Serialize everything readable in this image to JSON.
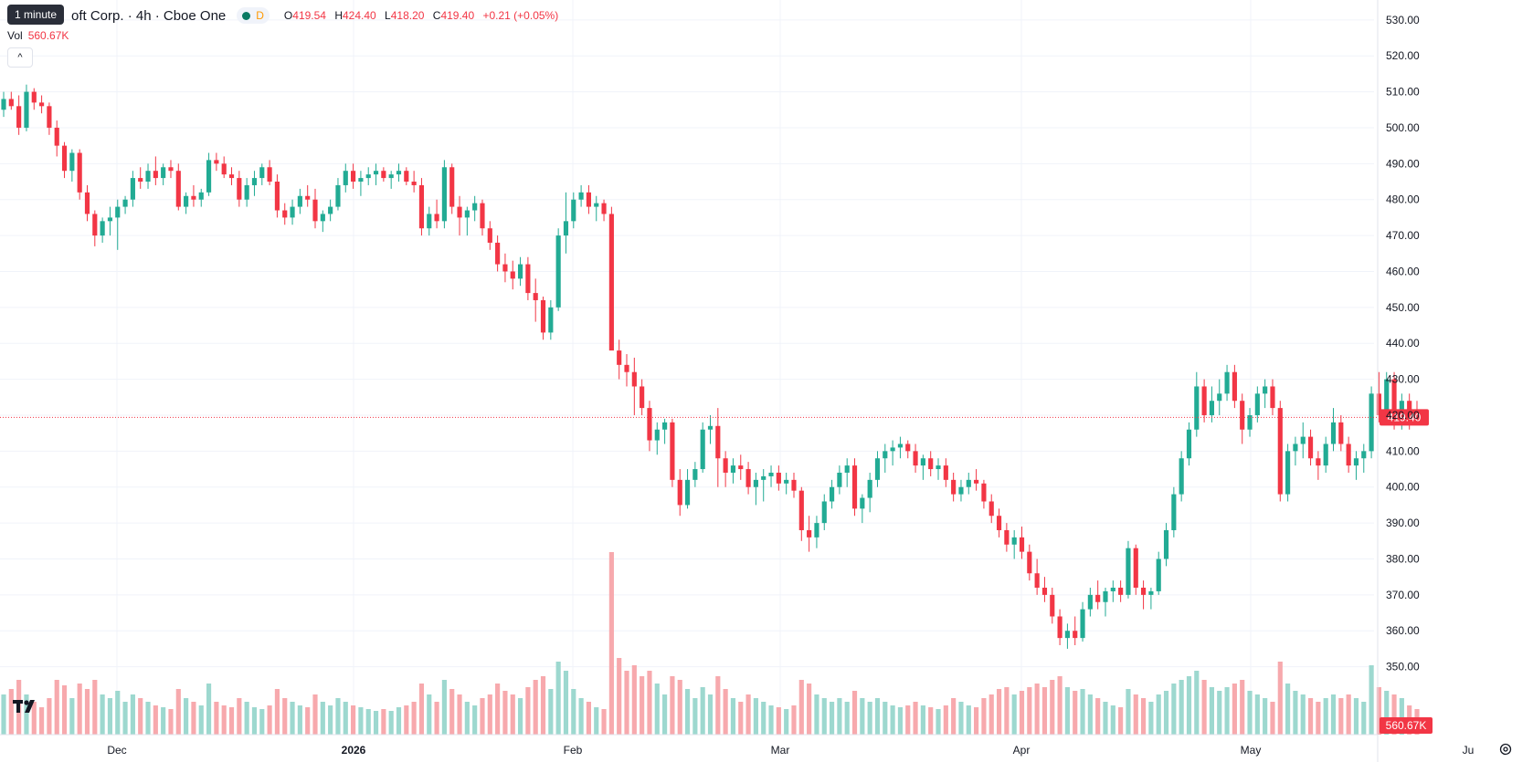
{
  "header": {
    "title": "oft Corp. · 4h · Cboe One",
    "tooltip": "1 minute",
    "interval_flag": "D",
    "ohlc": {
      "o_label": "O",
      "o": "419.54",
      "h_label": "H",
      "h": "424.40",
      "l_label": "L",
      "l": "418.20",
      "c_label": "C",
      "c": "419.40",
      "change": "+0.21 (+0.05%)"
    },
    "vol_label": "Vol",
    "vol_value": "560.67K",
    "collapse_icon": "^"
  },
  "colors": {
    "up": "#22ab94",
    "down": "#f23645",
    "vol_up": "#9dd8cf",
    "vol_down": "#f7a9ad",
    "grid": "#f0f3fa",
    "axis_text": "#131722"
  },
  "chart_data": {
    "type": "candlestick",
    "price_axis": {
      "ticks": [
        "530.00",
        "520.00",
        "510.00",
        "500.00",
        "490.00",
        "480.00",
        "470.00",
        "460.00",
        "450.00",
        "440.00",
        "430.00",
        "420.00",
        "410.00",
        "400.00",
        "390.00",
        "380.00",
        "370.00",
        "360.00",
        "350.00"
      ],
      "min": 340,
      "max": 533
    },
    "time_axis": {
      "labels": [
        "Dec",
        "2026",
        "Feb",
        "Mar",
        "Apr",
        "May",
        "Ju"
      ]
    },
    "last_price": {
      "value": 419.4,
      "label": "419.40"
    },
    "last_volume_label": "560.67K",
    "bars": [
      [
        505,
        510,
        503,
        508,
        0.22
      ],
      [
        508,
        510,
        505,
        506,
        0.25
      ],
      [
        506,
        509,
        498,
        500,
        0.3
      ],
      [
        500,
        512,
        499,
        510,
        0.22
      ],
      [
        510,
        511,
        505,
        507,
        0.18
      ],
      [
        507,
        509,
        504,
        506,
        0.15
      ],
      [
        506,
        507,
        498,
        500,
        0.2
      ],
      [
        500,
        502,
        492,
        495,
        0.3
      ],
      [
        495,
        496,
        486,
        488,
        0.27
      ],
      [
        488,
        494,
        485,
        493,
        0.2
      ],
      [
        493,
        494,
        480,
        482,
        0.28
      ],
      [
        482,
        484,
        474,
        476,
        0.25
      ],
      [
        476,
        477,
        467,
        470,
        0.3
      ],
      [
        470,
        475,
        468,
        474,
        0.22
      ],
      [
        474,
        478,
        470,
        475,
        0.2
      ],
      [
        475,
        480,
        466,
        478,
        0.24
      ],
      [
        478,
        481,
        476,
        480,
        0.18
      ],
      [
        480,
        488,
        478,
        486,
        0.22
      ],
      [
        486,
        489,
        483,
        485,
        0.2
      ],
      [
        485,
        490,
        483,
        488,
        0.18
      ],
      [
        488,
        492,
        484,
        486,
        0.16
      ],
      [
        486,
        490,
        484,
        489,
        0.15
      ],
      [
        489,
        491,
        486,
        488,
        0.14
      ],
      [
        488,
        490,
        477,
        478,
        0.25
      ],
      [
        478,
        482,
        476,
        481,
        0.2
      ],
      [
        481,
        484,
        478,
        480,
        0.18
      ],
      [
        480,
        483,
        478,
        482,
        0.16
      ],
      [
        482,
        493,
        481,
        491,
        0.28
      ],
      [
        491,
        493,
        488,
        490,
        0.18
      ],
      [
        490,
        492,
        486,
        487,
        0.16
      ],
      [
        487,
        489,
        484,
        486,
        0.15
      ],
      [
        486,
        488,
        478,
        480,
        0.2
      ],
      [
        480,
        486,
        478,
        484,
        0.18
      ],
      [
        484,
        488,
        481,
        486,
        0.15
      ],
      [
        486,
        490,
        484,
        489,
        0.14
      ],
      [
        489,
        491,
        484,
        485,
        0.16
      ],
      [
        485,
        487,
        475,
        477,
        0.25
      ],
      [
        477,
        479,
        473,
        475,
        0.2
      ],
      [
        475,
        480,
        473,
        478,
        0.18
      ],
      [
        478,
        483,
        476,
        481,
        0.16
      ],
      [
        481,
        484,
        478,
        480,
        0.15
      ],
      [
        480,
        483,
        472,
        474,
        0.22
      ],
      [
        474,
        477,
        471,
        476,
        0.18
      ],
      [
        476,
        480,
        474,
        478,
        0.16
      ],
      [
        478,
        486,
        477,
        484,
        0.2
      ],
      [
        484,
        490,
        482,
        488,
        0.18
      ],
      [
        488,
        490,
        483,
        485,
        0.16
      ],
      [
        485,
        488,
        481,
        486,
        0.15
      ],
      [
        486,
        489,
        484,
        487,
        0.14
      ],
      [
        487,
        490,
        484,
        488,
        0.13
      ],
      [
        488,
        489,
        485,
        486,
        0.14
      ],
      [
        486,
        488,
        483,
        487,
        0.13
      ],
      [
        487,
        490,
        485,
        488,
        0.15
      ],
      [
        488,
        489,
        484,
        485,
        0.16
      ],
      [
        485,
        488,
        482,
        484,
        0.18
      ],
      [
        484,
        486,
        470,
        472,
        0.28
      ],
      [
        472,
        478,
        470,
        476,
        0.22
      ],
      [
        476,
        480,
        472,
        474,
        0.18
      ],
      [
        474,
        491,
        472,
        489,
        0.3
      ],
      [
        489,
        490,
        476,
        478,
        0.25
      ],
      [
        478,
        481,
        470,
        475,
        0.22
      ],
      [
        475,
        478,
        470,
        477,
        0.18
      ],
      [
        477,
        481,
        474,
        479,
        0.16
      ],
      [
        479,
        480,
        470,
        472,
        0.2
      ],
      [
        472,
        474,
        466,
        468,
        0.22
      ],
      [
        468,
        470,
        460,
        462,
        0.28
      ],
      [
        462,
        465,
        457,
        460,
        0.24
      ],
      [
        460,
        463,
        455,
        458,
        0.22
      ],
      [
        458,
        464,
        456,
        462,
        0.2
      ],
      [
        462,
        464,
        452,
        454,
        0.26
      ],
      [
        454,
        458,
        446,
        452,
        0.3
      ],
      [
        452,
        453,
        441,
        443,
        0.32
      ],
      [
        443,
        452,
        441,
        450,
        0.25
      ],
      [
        450,
        472,
        449,
        470,
        0.4
      ],
      [
        470,
        482,
        465,
        474,
        0.35
      ],
      [
        474,
        482,
        472,
        480,
        0.25
      ],
      [
        480,
        484,
        478,
        482,
        0.2
      ],
      [
        482,
        484,
        476,
        478,
        0.18
      ],
      [
        478,
        481,
        474,
        479,
        0.15
      ],
      [
        479,
        480,
        474,
        476,
        0.14
      ],
      [
        476,
        478,
        440,
        438,
        1.0
      ],
      [
        438,
        441,
        430,
        434,
        0.42
      ],
      [
        434,
        437,
        428,
        432,
        0.35
      ],
      [
        432,
        436,
        420,
        428,
        0.38
      ],
      [
        428,
        430,
        420,
        422,
        0.32
      ],
      [
        422,
        424,
        410,
        413,
        0.35
      ],
      [
        413,
        418,
        409,
        416,
        0.28
      ],
      [
        416,
        419,
        412,
        418,
        0.22
      ],
      [
        418,
        419,
        400,
        402,
        0.32
      ],
      [
        402,
        405,
        392,
        395,
        0.3
      ],
      [
        395,
        405,
        394,
        402,
        0.25
      ],
      [
        402,
        407,
        400,
        405,
        0.2
      ],
      [
        405,
        418,
        404,
        416,
        0.26
      ],
      [
        416,
        420,
        412,
        417,
        0.22
      ],
      [
        417,
        422,
        400,
        408,
        0.32
      ],
      [
        408,
        410,
        400,
        404,
        0.25
      ],
      [
        404,
        408,
        401,
        406,
        0.2
      ],
      [
        406,
        409,
        402,
        405,
        0.18
      ],
      [
        405,
        407,
        398,
        400,
        0.22
      ],
      [
        400,
        404,
        395,
        402,
        0.2
      ],
      [
        402,
        405,
        396,
        403,
        0.18
      ],
      [
        403,
        406,
        400,
        404,
        0.16
      ],
      [
        404,
        406,
        399,
        401,
        0.15
      ],
      [
        401,
        404,
        398,
        402,
        0.14
      ],
      [
        402,
        404,
        397,
        399,
        0.16
      ],
      [
        399,
        400,
        385,
        388,
        0.3
      ],
      [
        388,
        392,
        382,
        386,
        0.28
      ],
      [
        386,
        392,
        383,
        390,
        0.22
      ],
      [
        390,
        398,
        388,
        396,
        0.2
      ],
      [
        396,
        402,
        394,
        400,
        0.18
      ],
      [
        400,
        406,
        398,
        404,
        0.2
      ],
      [
        404,
        408,
        400,
        406,
        0.18
      ],
      [
        406,
        408,
        392,
        394,
        0.24
      ],
      [
        394,
        398,
        390,
        397,
        0.2
      ],
      [
        397,
        404,
        393,
        402,
        0.18
      ],
      [
        402,
        410,
        400,
        408,
        0.2
      ],
      [
        408,
        412,
        404,
        410,
        0.18
      ],
      [
        410,
        413,
        406,
        411,
        0.16
      ],
      [
        411,
        414,
        408,
        412,
        0.15
      ],
      [
        412,
        413,
        408,
        410,
        0.16
      ],
      [
        410,
        412,
        404,
        406,
        0.18
      ],
      [
        406,
        409,
        402,
        408,
        0.16
      ],
      [
        408,
        410,
        403,
        405,
        0.15
      ],
      [
        405,
        408,
        402,
        406,
        0.14
      ],
      [
        406,
        408,
        400,
        402,
        0.16
      ],
      [
        402,
        404,
        396,
        398,
        0.2
      ],
      [
        398,
        402,
        396,
        400,
        0.18
      ],
      [
        400,
        404,
        398,
        402,
        0.16
      ],
      [
        402,
        405,
        399,
        401,
        0.15
      ],
      [
        401,
        402,
        394,
        396,
        0.2
      ],
      [
        396,
        398,
        390,
        392,
        0.22
      ],
      [
        392,
        394,
        386,
        388,
        0.25
      ],
      [
        388,
        390,
        382,
        384,
        0.26
      ],
      [
        384,
        388,
        380,
        386,
        0.22
      ],
      [
        386,
        389,
        380,
        382,
        0.24
      ],
      [
        382,
        384,
        374,
        376,
        0.26
      ],
      [
        376,
        380,
        370,
        372,
        0.28
      ],
      [
        372,
        375,
        368,
        370,
        0.26
      ],
      [
        370,
        372,
        362,
        364,
        0.3
      ],
      [
        364,
        366,
        356,
        358,
        0.32
      ],
      [
        358,
        362,
        355,
        360,
        0.26
      ],
      [
        360,
        364,
        356,
        358,
        0.24
      ],
      [
        358,
        368,
        357,
        366,
        0.25
      ],
      [
        366,
        372,
        364,
        370,
        0.22
      ],
      [
        370,
        374,
        366,
        368,
        0.2
      ],
      [
        368,
        372,
        364,
        371,
        0.18
      ],
      [
        371,
        374,
        368,
        372,
        0.16
      ],
      [
        372,
        374,
        368,
        370,
        0.15
      ],
      [
        370,
        385,
        369,
        383,
        0.25
      ],
      [
        383,
        384,
        370,
        372,
        0.22
      ],
      [
        372,
        374,
        366,
        370,
        0.2
      ],
      [
        370,
        372,
        366,
        371,
        0.18
      ],
      [
        371,
        382,
        370,
        380,
        0.22
      ],
      [
        380,
        390,
        378,
        388,
        0.24
      ],
      [
        388,
        400,
        386,
        398,
        0.28
      ],
      [
        398,
        410,
        396,
        408,
        0.3
      ],
      [
        408,
        418,
        406,
        416,
        0.32
      ],
      [
        416,
        432,
        414,
        428,
        0.35
      ],
      [
        428,
        430,
        418,
        420,
        0.3
      ],
      [
        420,
        428,
        418,
        424,
        0.26
      ],
      [
        424,
        430,
        420,
        426,
        0.24
      ],
      [
        426,
        434,
        424,
        432,
        0.26
      ],
      [
        432,
        434,
        422,
        424,
        0.28
      ],
      [
        424,
        426,
        412,
        416,
        0.3
      ],
      [
        416,
        422,
        414,
        420,
        0.24
      ],
      [
        420,
        428,
        418,
        426,
        0.22
      ],
      [
        426,
        430,
        422,
        428,
        0.2
      ],
      [
        428,
        430,
        420,
        422,
        0.18
      ],
      [
        422,
        424,
        396,
        398,
        0.4
      ],
      [
        398,
        412,
        396,
        410,
        0.28
      ],
      [
        410,
        414,
        406,
        412,
        0.24
      ],
      [
        412,
        418,
        408,
        414,
        0.22
      ],
      [
        414,
        416,
        406,
        408,
        0.2
      ],
      [
        408,
        410,
        402,
        406,
        0.18
      ],
      [
        406,
        414,
        404,
        412,
        0.2
      ],
      [
        412,
        422,
        410,
        418,
        0.22
      ],
      [
        418,
        420,
        410,
        412,
        0.2
      ],
      [
        412,
        414,
        404,
        406,
        0.22
      ],
      [
        406,
        410,
        402,
        408,
        0.2
      ],
      [
        408,
        412,
        404,
        410,
        0.18
      ],
      [
        410,
        428,
        408,
        426,
        0.38
      ],
      [
        426,
        432,
        418,
        420,
        0.26
      ],
      [
        420,
        432,
        418,
        430,
        0.24
      ],
      [
        430,
        432,
        416,
        418,
        0.22
      ],
      [
        418,
        426,
        416,
        424,
        0.2
      ],
      [
        424,
        426,
        416,
        420,
        0.16
      ],
      [
        420,
        424,
        418,
        419.4,
        0.14
      ]
    ]
  }
}
